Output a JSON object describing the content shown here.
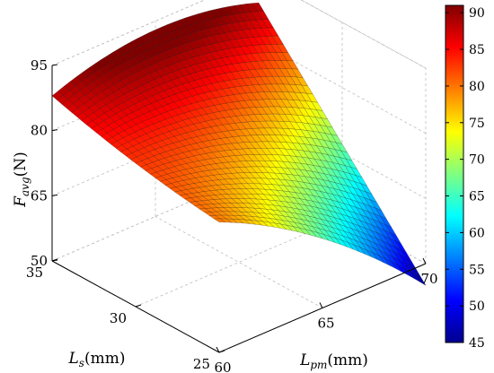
{
  "chart_data": {
    "type": "surface",
    "x_axis": {
      "label_base": "L",
      "label_sub": "pm",
      "label_unit": "(mm)",
      "ticks": [
        60,
        65,
        70
      ],
      "range": [
        60,
        70
      ]
    },
    "y_axis": {
      "label_base": "L",
      "label_sub": "s",
      "label_unit": "(mm)",
      "ticks": [
        25,
        30,
        35
      ],
      "range": [
        25,
        35
      ]
    },
    "z_axis": {
      "label_base": "F",
      "label_sub": "avg",
      "label_unit": "(N)",
      "ticks": [
        50,
        65,
        80,
        95
      ],
      "range": [
        50,
        95
      ]
    },
    "colorbar": {
      "ticks": [
        45,
        50,
        55,
        60,
        65,
        70,
        75,
        80,
        85,
        90
      ],
      "range": [
        45,
        91
      ],
      "colormap": "jet"
    },
    "surface_corners": [
      {
        "x": 60,
        "y": 35,
        "z": 88
      },
      {
        "x": 60,
        "y": 25,
        "z": 80
      },
      {
        "x": 70,
        "y": 35,
        "z": 89
      },
      {
        "x": 70,
        "y": 25,
        "z": 45
      }
    ],
    "grid": true
  }
}
